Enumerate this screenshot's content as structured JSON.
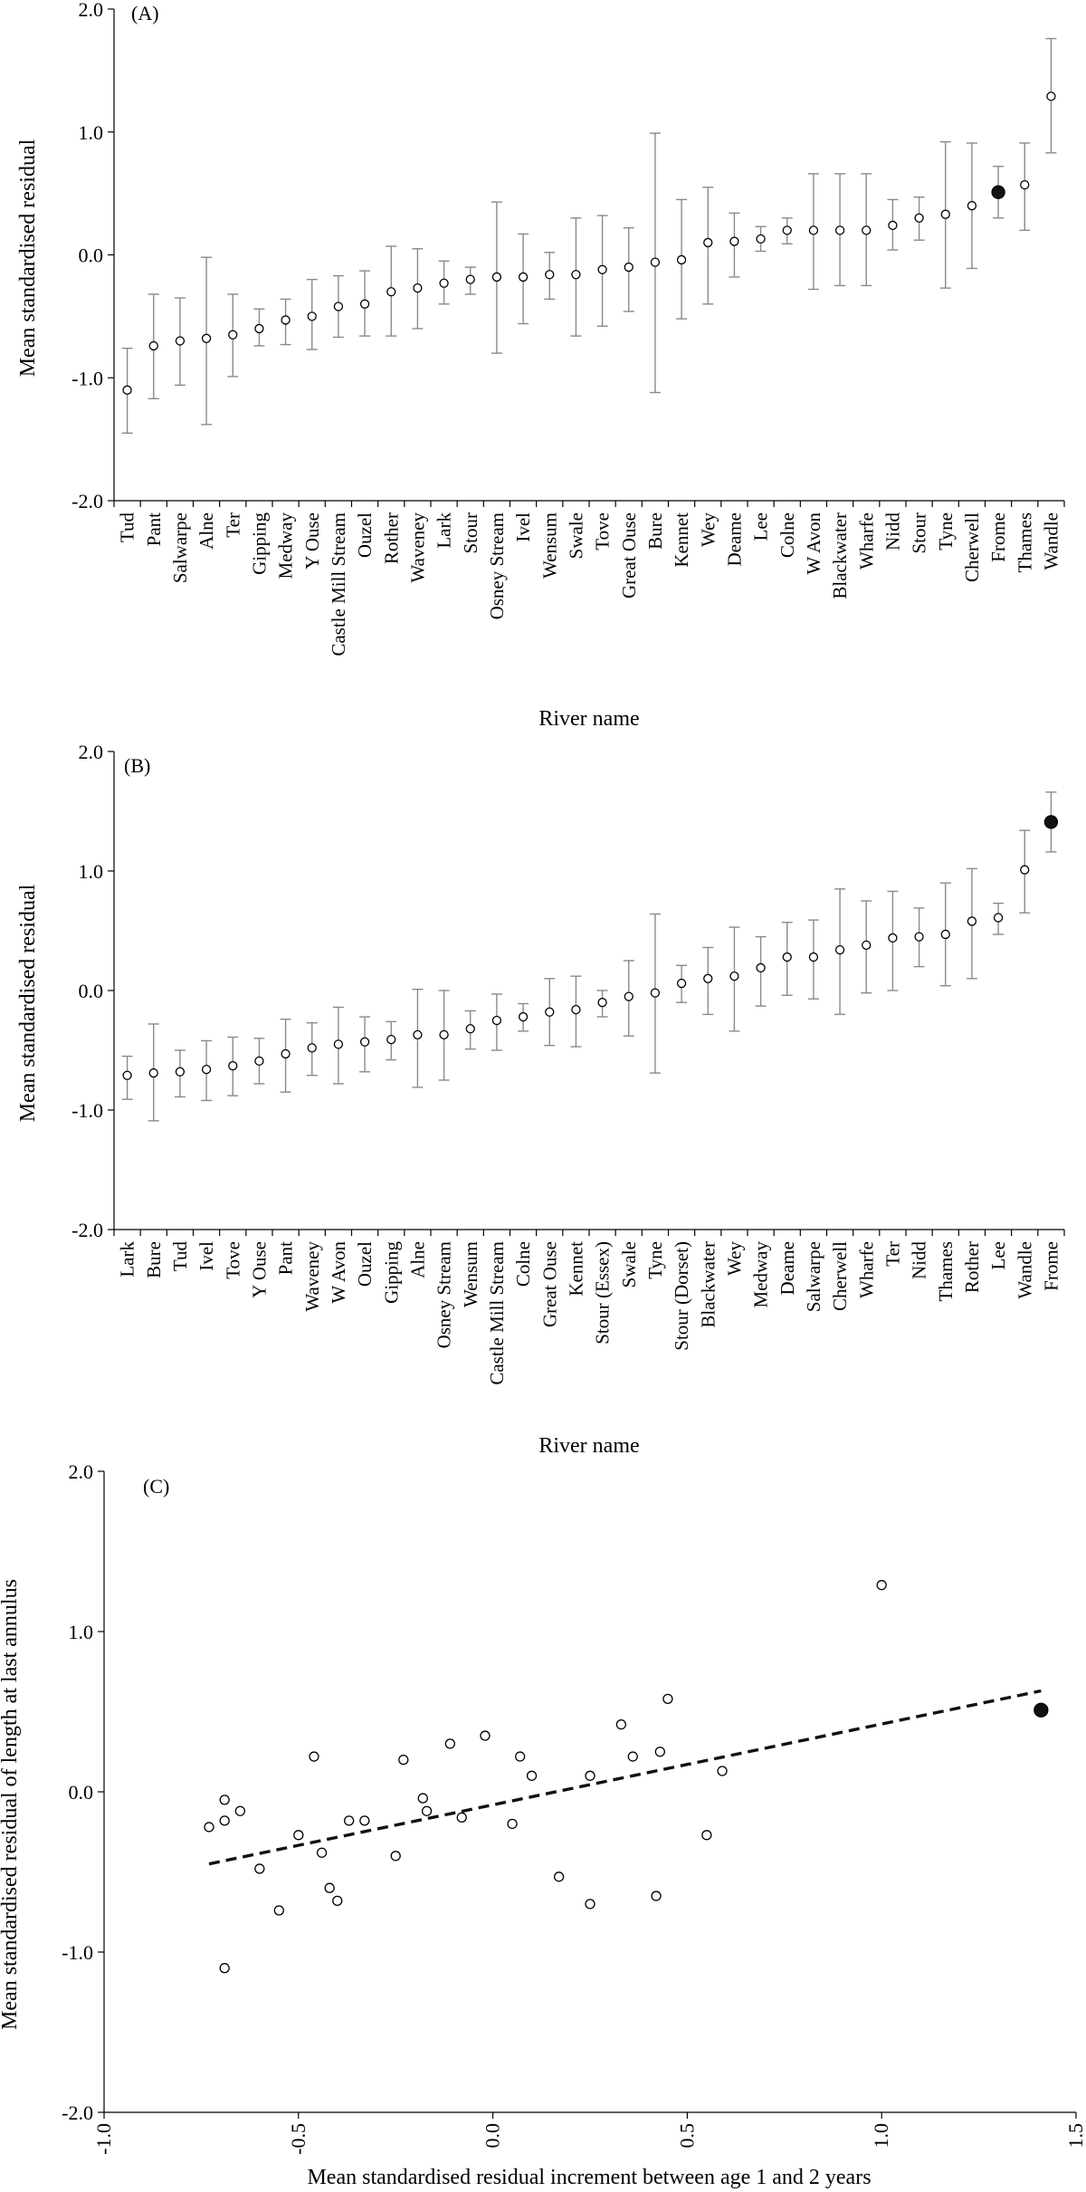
{
  "chart_data": [
    {
      "panel": "(A)",
      "type": "scatter",
      "ylabel": "Mean standardised residual",
      "xlabel": "River name",
      "ylim": [
        -2.0,
        2.0
      ],
      "yticks": [
        "2.0",
        "1.0",
        "0.0",
        "-1.0",
        "-2.0"
      ],
      "categories": [
        "Tud",
        "Pant",
        "Salwarpe",
        "Alne",
        "Ter",
        "Gipping",
        "Medway",
        "Y Ouse",
        "Castle Mill Stream",
        "Ouzel",
        "Rother",
        "Waveney",
        "Lark",
        "Stour",
        "Osney Stream",
        "Ivel",
        "Wensum",
        "Swale",
        "Tove",
        "Great Ouse",
        "Bure",
        "Kennet",
        "Wey",
        "Deame",
        "Lee",
        "Colne",
        "W Avon",
        "Blackwater",
        "Wharfe",
        "Nidd",
        "Stour",
        "Tyne",
        "Cherwell",
        "Frome",
        "Thames",
        "Wandle"
      ],
      "values": [
        -1.1,
        -0.74,
        -0.7,
        -0.68,
        -0.65,
        -0.6,
        -0.53,
        -0.5,
        -0.42,
        -0.4,
        -0.3,
        -0.27,
        -0.23,
        -0.2,
        -0.18,
        -0.18,
        -0.16,
        -0.16,
        -0.12,
        -0.1,
        -0.06,
        -0.04,
        0.1,
        0.11,
        0.13,
        0.2,
        0.2,
        0.2,
        0.2,
        0.24,
        0.3,
        0.33,
        0.4,
        0.51,
        0.57,
        1.29
      ],
      "err_low": [
        -1.45,
        -1.17,
        -1.06,
        -1.38,
        -0.99,
        -0.74,
        -0.73,
        -0.77,
        -0.67,
        -0.66,
        -0.66,
        -0.6,
        -0.4,
        -0.32,
        -0.8,
        -0.56,
        -0.36,
        -0.66,
        -0.58,
        -0.46,
        -1.12,
        -0.52,
        -0.4,
        -0.18,
        0.03,
        0.09,
        -0.28,
        -0.25,
        -0.25,
        0.04,
        0.12,
        -0.27,
        -0.11,
        0.3,
        0.2,
        0.83
      ],
      "err_high": [
        -0.76,
        -0.32,
        -0.35,
        -0.02,
        -0.32,
        -0.44,
        -0.36,
        -0.2,
        -0.17,
        -0.13,
        0.07,
        0.05,
        -0.05,
        -0.1,
        0.43,
        0.17,
        0.02,
        0.3,
        0.32,
        0.22,
        0.99,
        0.45,
        0.55,
        0.34,
        0.23,
        0.3,
        0.66,
        0.66,
        0.66,
        0.45,
        0.47,
        0.92,
        0.91,
        0.72,
        0.91,
        1.76
      ],
      "highlight": "Frome"
    },
    {
      "panel": "(B)",
      "type": "scatter",
      "ylabel": "Mean standardised residual",
      "xlabel": "River name",
      "ylim": [
        -2.0,
        2.0
      ],
      "yticks": [
        "2.0",
        "1.0",
        "0.0",
        "-1.0",
        "-2.0"
      ],
      "categories": [
        "Lark",
        "Bure",
        "Tud",
        "Ivel",
        "Tove",
        "Y Ouse",
        "Pant",
        "Waveney",
        "W Avon",
        "Ouzel",
        "Gipping",
        "Alne",
        "Osney Stream",
        "Wensum",
        "Castle Mill Stream",
        "Colne",
        "Great Ouse",
        "Kennet",
        "Stour (Essex)",
        "Swale",
        "Tyne",
        "Stour (Dorset)",
        "Blackwater",
        "Wey",
        "Medway",
        "Deame",
        "Salwarpe",
        "Cherwell",
        "Wharfe",
        "Ter",
        "Nidd",
        "Thames",
        "Rother",
        "Lee",
        "Wandle",
        "Frome"
      ],
      "values": [
        -0.71,
        -0.69,
        -0.68,
        -0.66,
        -0.63,
        -0.59,
        -0.53,
        -0.48,
        -0.45,
        -0.43,
        -0.41,
        -0.37,
        -0.37,
        -0.32,
        -0.25,
        -0.22,
        -0.18,
        -0.16,
        -0.1,
        -0.05,
        -0.02,
        0.06,
        0.1,
        0.12,
        0.19,
        0.28,
        0.28,
        0.34,
        0.38,
        0.44,
        0.45,
        0.47,
        0.58,
        0.61,
        1.01,
        1.41
      ],
      "err_low": [
        -0.91,
        -1.09,
        -0.89,
        -0.92,
        -0.88,
        -0.78,
        -0.85,
        -0.71,
        -0.78,
        -0.68,
        -0.58,
        -0.81,
        -0.75,
        -0.49,
        -0.5,
        -0.34,
        -0.46,
        -0.47,
        -0.22,
        -0.38,
        -0.69,
        -0.1,
        -0.2,
        -0.34,
        -0.13,
        -0.04,
        -0.07,
        -0.2,
        -0.02,
        0.0,
        0.2,
        0.04,
        0.1,
        0.47,
        0.65,
        1.16
      ],
      "err_high": [
        -0.55,
        -0.28,
        -0.5,
        -0.42,
        -0.39,
        -0.4,
        -0.24,
        -0.27,
        -0.14,
        -0.22,
        -0.26,
        0.01,
        0.0,
        -0.17,
        -0.03,
        -0.11,
        0.1,
        0.12,
        0.0,
        0.25,
        0.64,
        0.21,
        0.36,
        0.53,
        0.45,
        0.57,
        0.59,
        0.85,
        0.75,
        0.83,
        0.69,
        0.9,
        1.02,
        0.73,
        1.34,
        1.66
      ],
      "highlight": "Frome"
    },
    {
      "panel": "(C)",
      "type": "scatter",
      "ylabel": "Mean standardised residual of length at last annulus",
      "xlabel": "Mean standardised residual increment between age 1 and 2 years",
      "xlim": [
        -1.0,
        1.5
      ],
      "ylim": [
        -2.0,
        2.0
      ],
      "xticks": [
        "-1.0",
        "-0.5",
        "0.0",
        "0.5",
        "1.0",
        "1.5"
      ],
      "yticks": [
        "2.0",
        "1.0",
        "0.0",
        "-1.0",
        "-2.0"
      ],
      "points": [
        [
          -0.73,
          -0.22
        ],
        [
          -0.69,
          -0.05
        ],
        [
          -0.69,
          -0.18
        ],
        [
          -0.65,
          -0.12
        ],
        [
          -0.6,
          -0.48
        ],
        [
          -0.55,
          -0.74
        ],
        [
          -0.5,
          -0.27
        ],
        [
          -0.46,
          0.22
        ],
        [
          -0.44,
          -0.38
        ],
        [
          -0.42,
          -0.6
        ],
        [
          -0.4,
          -0.68
        ],
        [
          -0.37,
          -0.18
        ],
        [
          -0.33,
          -0.18
        ],
        [
          -0.25,
          -0.4
        ],
        [
          -0.23,
          0.2
        ],
        [
          -0.17,
          -0.12
        ],
        [
          -0.18,
          -0.04
        ],
        [
          -0.11,
          0.3
        ],
        [
          -0.08,
          -0.16
        ],
        [
          -0.02,
          0.35
        ],
        [
          0.05,
          -0.2
        ],
        [
          0.07,
          0.22
        ],
        [
          0.1,
          0.1
        ],
        [
          0.17,
          -0.53
        ],
        [
          0.25,
          0.1
        ],
        [
          0.25,
          -0.7
        ],
        [
          0.33,
          0.42
        ],
        [
          0.36,
          0.22
        ],
        [
          0.42,
          -0.65
        ],
        [
          0.43,
          0.25
        ],
        [
          0.45,
          0.58
        ],
        [
          0.55,
          -0.27
        ],
        [
          0.59,
          0.13
        ],
        [
          1.0,
          1.29
        ],
        [
          -0.69,
          -1.1
        ]
      ],
      "highlight_point": [
        1.41,
        0.51
      ],
      "trendline": {
        "x": [
          -0.73,
          1.41
        ],
        "y": [
          -0.45,
          0.63
        ]
      }
    }
  ]
}
